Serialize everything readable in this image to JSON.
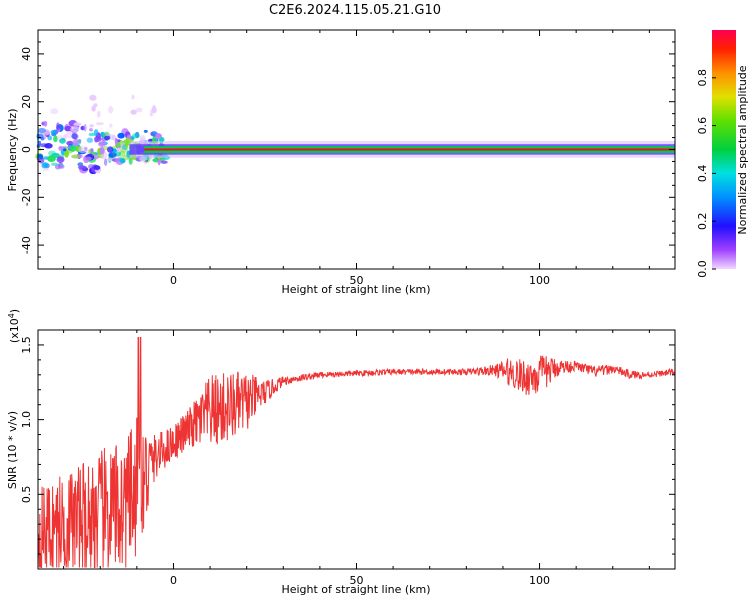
{
  "title": "C2E6.2024.115.05.21.G10",
  "colors": {
    "snr_line": "#ee3333",
    "axis": "#000000",
    "dc_line_outer": "#00cc44",
    "dc_line_inner": "#ff0033"
  },
  "chart_data": [
    {
      "type": "heatmap",
      "name": "spectrogram",
      "xlabel": "Height of straight line (km)",
      "ylabel": "Frequency (Hz)",
      "xlim": [
        -37,
        137
      ],
      "ylim": [
        -50,
        50
      ],
      "xticks": [
        0,
        50,
        100
      ],
      "yticks": [
        -40,
        -20,
        0,
        20,
        40
      ],
      "colorbar": {
        "label": "Normalized spectral amplitude",
        "range": [
          0,
          1
        ],
        "ticks": [
          "0.0",
          "0.2",
          "0.4",
          "0.6",
          "0.8"
        ],
        "colormap": "rainbow"
      },
      "features": {
        "dominant_frequency_hz": 0,
        "strong_band_start_km": -8,
        "scatter_region_km": [
          -37,
          -8
        ],
        "scatter_frequency_range_hz": [
          -10,
          25
        ]
      }
    },
    {
      "type": "line",
      "name": "snr",
      "xlabel": "Height of straight line (km)",
      "ylabel": "SNR (10 * v/v)",
      "y_multiplier": "(x10^4)",
      "xlim": [
        -37,
        137
      ],
      "ylim": [
        0,
        1.6
      ],
      "xticks": [
        0,
        50,
        100
      ],
      "yticks": [
        "0.5",
        "1.0",
        "1.5"
      ],
      "envelope": {
        "x": [
          -37,
          -30,
          -20,
          -12,
          -10,
          -8,
          -5,
          0,
          5,
          10,
          15,
          20,
          25,
          30,
          40,
          50,
          60,
          70,
          80,
          88,
          92,
          96,
          100,
          105,
          110,
          115,
          120,
          125,
          130,
          137
        ],
        "y_mean": [
          0.25,
          0.3,
          0.35,
          0.45,
          0.55,
          0.6,
          0.75,
          0.85,
          0.95,
          1.05,
          1.08,
          1.12,
          1.18,
          1.26,
          1.3,
          1.31,
          1.32,
          1.32,
          1.32,
          1.33,
          1.32,
          1.28,
          1.3,
          1.35,
          1.36,
          1.32,
          1.34,
          1.3,
          1.3,
          1.32
        ],
        "y_amplitude": [
          0.3,
          0.35,
          0.45,
          0.45,
          0.5,
          0.4,
          0.15,
          0.12,
          0.15,
          0.25,
          0.25,
          0.2,
          0.08,
          0.03,
          0.02,
          0.02,
          0.02,
          0.02,
          0.02,
          0.04,
          0.1,
          0.12,
          0.14,
          0.06,
          0.03,
          0.04,
          0.03,
          0.03,
          0.02,
          0.02
        ]
      }
    }
  ]
}
